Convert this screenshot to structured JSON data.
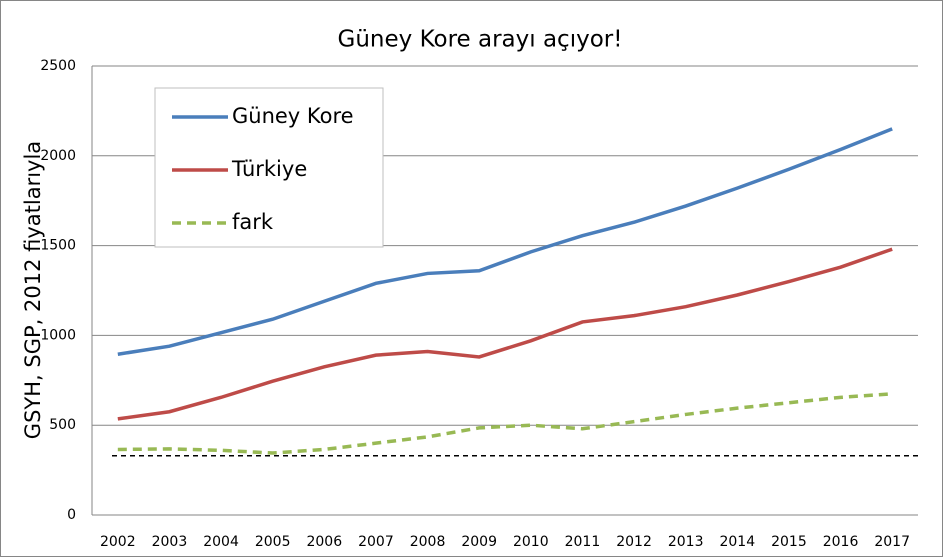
{
  "chart_data": {
    "type": "line",
    "title": "Güney Kore arayı açıyor!",
    "y_label": "GSYH, SGP, 2012 fiyatlarıyla",
    "categories": [
      "2002",
      "2003",
      "2004",
      "2005",
      "2006",
      "2007",
      "2008",
      "2009",
      "2010",
      "2011",
      "2012",
      "2013",
      "2014",
      "2015",
      "2016",
      "2017"
    ],
    "series": [
      {
        "name": "Güney Kore",
        "color": "#4a7ebb",
        "dashed": false,
        "values": [
          895,
          940,
          1015,
          1090,
          1190,
          1290,
          1345,
          1360,
          1465,
          1555,
          1630,
          1720,
          1820,
          1925,
          2035,
          2150
        ]
      },
      {
        "name": "Türkiye",
        "color": "#be4b48",
        "dashed": false,
        "values": [
          535,
          575,
          655,
          745,
          825,
          890,
          910,
          880,
          970,
          1075,
          1110,
          1160,
          1225,
          1300,
          1380,
          1480
        ]
      },
      {
        "name": "fark",
        "color": "#98b954",
        "dashed": true,
        "values": [
          365,
          368,
          360,
          345,
          365,
          400,
          435,
          485,
          500,
          480,
          520,
          560,
          595,
          625,
          655,
          675
        ]
      }
    ],
    "hline": {
      "value": 330,
      "color": "#000000",
      "dashed": true
    },
    "ylim": [
      0,
      2500
    ],
    "yticks": [
      0,
      500,
      1000,
      1500,
      2000,
      2500
    ],
    "grid": true,
    "legend": "top-left"
  }
}
